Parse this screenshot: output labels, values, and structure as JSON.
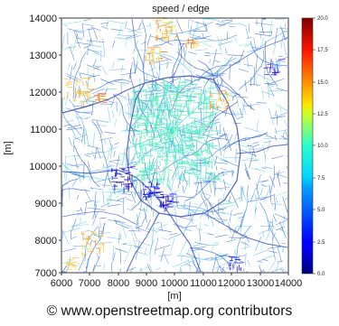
{
  "title": "speed / edge",
  "xlabel": "[m]",
  "ylabel": "[m]",
  "x_ticks": [
    "6000",
    "7000",
    "8000",
    "9000",
    "10000",
    "11000",
    "12000",
    "13000",
    "14000"
  ],
  "y_ticks": [
    "7000",
    "8000",
    "9000",
    "10000",
    "11000",
    "12000",
    "13000",
    "14000"
  ],
  "colorbar_ticks": [
    "20.0",
    "17.5",
    "15.0",
    "12.5",
    "10.0",
    "7.5",
    "5.0",
    "2.5",
    "0.0"
  ],
  "credit": "© www.openstreetmap.org contributors",
  "colormap": "jet",
  "colors": {
    "low": "#00007f",
    "mid": "#28ffcd",
    "high": "#7f0000",
    "streets": "#4a90e2",
    "center": "#3bf0b0",
    "roads": "#3a5ab4"
  }
}
